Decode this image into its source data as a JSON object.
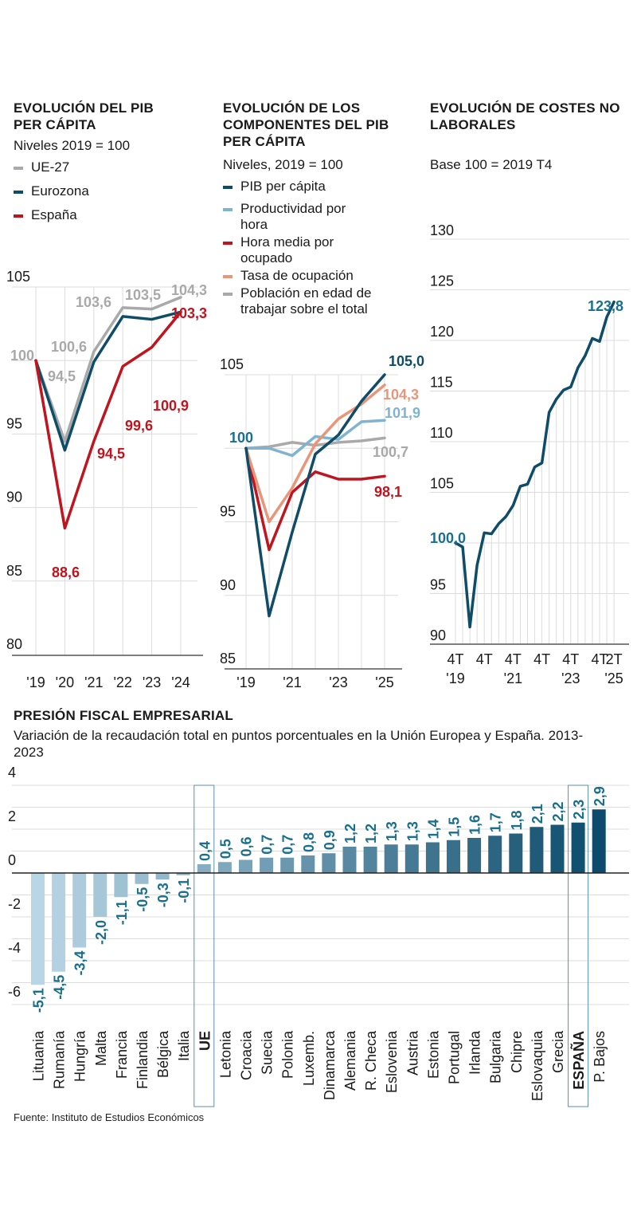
{
  "colors": {
    "ue27": "#a9a9a9",
    "eurozona": "#0f4c68",
    "espana": "#c0141e",
    "productividad": "#7fb3cf",
    "tasa": "#e8957a",
    "poblacion": "#a9a9a9",
    "teal_label": "#1a6f8e",
    "bar_light": "#b9d6e6",
    "bar_dark": "#0c4b6b"
  },
  "chart_data": [
    {
      "type": "line",
      "title": "EVOLUCIÓN DEL PIB PER CÁPITA",
      "subtitle": "Niveles 2019 = 100",
      "categories": [
        "'19",
        "'20",
        "'21",
        "'22",
        "'23",
        "'24"
      ],
      "yticks": [
        "105",
        "95",
        "90",
        "85",
        "80"
      ],
      "ylim": [
        80,
        105
      ],
      "grid": true,
      "legend": "top-left",
      "series": [
        {
          "name": "UE-27",
          "values": [
            100,
            94.5,
            100.6,
            103.6,
            103.5,
            104.3
          ]
        },
        {
          "name": "Eurozona",
          "values": [
            100,
            93.9,
            99.9,
            103.0,
            102.8,
            103.3
          ]
        },
        {
          "name": "España",
          "values": [
            100,
            88.6,
            94.5,
            99.6,
            100.9,
            103.3
          ]
        }
      ],
      "labels": {
        "ue27": [
          "100",
          "94,5",
          "100,6",
          "103,6",
          "103,5",
          "104,3"
        ],
        "espana": [
          "88,6",
          "94,5",
          "99,6",
          "100,9",
          "103,3"
        ]
      }
    },
    {
      "type": "line",
      "title": "EVOLUCIÓN DE LOS COMPONENTES DEL PIB PER CÁPITA",
      "subtitle": "Niveles, 2019 = 100",
      "categories": [
        "'19",
        "",
        "'21",
        "",
        "'23",
        "",
        "'25"
      ],
      "yticks": [
        "105",
        "95",
        "90",
        "85"
      ],
      "ylim": [
        85,
        105
      ],
      "grid": true,
      "legend": "top",
      "series": [
        {
          "name": "PIB per cápita",
          "values": [
            100,
            88.6,
            94.3,
            99.6,
            100.9,
            103.2,
            105.0
          ]
        },
        {
          "name": "Productividad por hora",
          "values": [
            100,
            100.0,
            99.5,
            100.8,
            100.6,
            101.8,
            101.9
          ]
        },
        {
          "name": "Hora media por ocupado",
          "values": [
            100,
            93.1,
            97.0,
            98.4,
            97.9,
            97.9,
            98.1
          ]
        },
        {
          "name": "Tasa de ocupación",
          "values": [
            100,
            95.0,
            97.3,
            100.3,
            102.0,
            103.0,
            104.3
          ]
        },
        {
          "name": "Población en edad de trabajar sobre el total",
          "values": [
            100,
            100.1,
            100.4,
            100.2,
            100.4,
            100.5,
            100.7
          ]
        }
      ],
      "labels": {
        "start": "100",
        "pib": "105,0",
        "tasa": "104,3",
        "productividad": "101,9",
        "poblacion": "100,7",
        "hora": "98,1"
      }
    },
    {
      "type": "line",
      "title": "EVOLUCIÓN DE COSTES NO LABORALES",
      "subtitle": "Base 100 = 2019 T4",
      "categories": [
        "4T\n'19",
        "",
        "",
        "",
        "4T",
        "",
        "",
        "",
        "4T\n'21",
        "",
        "",
        "",
        "4T",
        "",
        "",
        "",
        "4T\n'23",
        "",
        "",
        "",
        "4T",
        "",
        "2T\n'25"
      ],
      "yticks": [
        "130",
        "125",
        "120",
        "115",
        "110",
        "105",
        "95",
        "90"
      ],
      "ylim": [
        90,
        130
      ],
      "grid": true,
      "series": [
        {
          "name": "",
          "values": [
            100.0,
            99.6,
            91.7,
            97.8,
            101.0,
            100.9,
            101.9,
            102.6,
            103.7,
            105.6,
            105.8,
            107.5,
            107.9,
            112.9,
            114.2,
            115.1,
            115.4,
            117.3,
            118.5,
            120.2,
            119.9,
            122.3,
            123.8
          ]
        }
      ],
      "labels": {
        "start": "100,0",
        "end": "123,8"
      }
    },
    {
      "type": "bar",
      "title": "PRESIÓN FISCAL EMPRESARIAL",
      "subtitle": "Variación de la recaudación total en puntos porcentuales en la Unión Europea y España. 2013-2023",
      "yticks": [
        "4",
        "2",
        "0",
        "-2",
        "-4",
        "-6"
      ],
      "ylim": [
        -6,
        4
      ],
      "grid": true,
      "categories": [
        "Lituania",
        "Rumanía",
        "Hungría",
        "Malta",
        "Francia",
        "Finlandia",
        "Bélgica",
        "Italia",
        "UE",
        "Letonia",
        "Croacia",
        "Suecia",
        "Polonia",
        "Luxemb.",
        "Dinamarca",
        "Alemania",
        "R. Checa",
        "Eslovenia",
        "Austria",
        "Estonia",
        "Portugal",
        "Irlanda",
        "Bulgaria",
        "Chipre",
        "Eslovaquia",
        "Grecia",
        "ESPAÑA",
        "P. Bajos"
      ],
      "values": [
        -5.1,
        -4.5,
        -3.4,
        -2.0,
        -1.1,
        -0.5,
        -0.3,
        -0.1,
        0.4,
        0.5,
        0.6,
        0.7,
        0.7,
        0.8,
        0.9,
        1.2,
        1.2,
        1.3,
        1.3,
        1.4,
        1.5,
        1.6,
        1.7,
        1.8,
        2.1,
        2.2,
        2.3,
        2.9
      ],
      "value_labels": [
        "-5,1",
        "-4,5",
        "-3,4",
        "-2,0",
        "-1,1",
        "-0,5",
        "-0,3",
        "-0,1",
        "0,4",
        "0,5",
        "0,6",
        "0,7",
        "0,7",
        "0,8",
        "0,9",
        "1,2",
        "1,2",
        "1,3",
        "1,3",
        "1,4",
        "1,5",
        "1,6",
        "1,7",
        "1,8",
        "2,1",
        "2,2",
        "2,3",
        "2,9"
      ],
      "highlighted": [
        "UE",
        "ESPAÑA"
      ]
    }
  ],
  "source": "Fuente: Instituto de Estudios Económicos"
}
